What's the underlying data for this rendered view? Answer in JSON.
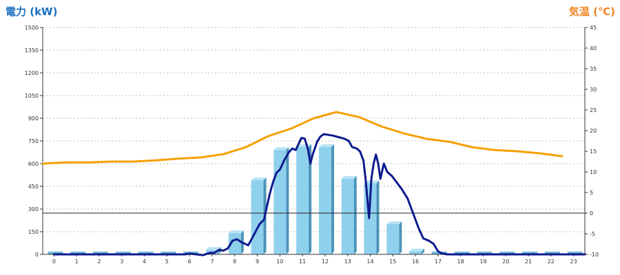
{
  "chart_data": {
    "type": "bar+line",
    "left_axis_title": "電力 (kW)",
    "right_axis_title": "気温 (℃)",
    "categories": [
      "0",
      "1",
      "2",
      "3",
      "4",
      "5",
      "6",
      "7",
      "8",
      "9",
      "10",
      "11",
      "12",
      "13",
      "14",
      "15",
      "16",
      "17",
      "18",
      "19",
      "20",
      "21",
      "22",
      "23"
    ],
    "y_left": {
      "min": 0,
      "max": 1500,
      "ticks": [
        0,
        150,
        300,
        450,
        600,
        750,
        900,
        1050,
        1200,
        1350,
        1500
      ]
    },
    "y_right": {
      "min": -10,
      "max": 45,
      "ticks": [
        -10,
        -5,
        0,
        5,
        10,
        15,
        20,
        25,
        30,
        35,
        40,
        45
      ]
    },
    "bars": {
      "axis": "left",
      "values": [
        0,
        0,
        0,
        0,
        0,
        0,
        0,
        30,
        140,
        490,
        690,
        710,
        710,
        500,
        470,
        200,
        20,
        0,
        0,
        0,
        0,
        0,
        0,
        0
      ]
    },
    "power_line": {
      "axis": "left",
      "points": [
        [
          0,
          0
        ],
        [
          5.8,
          0
        ],
        [
          6,
          5
        ],
        [
          6.3,
          0
        ],
        [
          6.6,
          -5
        ],
        [
          6.9,
          10
        ],
        [
          7.1,
          10
        ],
        [
          7.3,
          30
        ],
        [
          7.5,
          25
        ],
        [
          7.7,
          40
        ],
        [
          7.9,
          90
        ],
        [
          8.1,
          100
        ],
        [
          8.3,
          80
        ],
        [
          8.6,
          60
        ],
        [
          8.85,
          130
        ],
        [
          9.1,
          200
        ],
        [
          9.3,
          230
        ],
        [
          9.4,
          300
        ],
        [
          9.55,
          400
        ],
        [
          9.7,
          480
        ],
        [
          9.85,
          540
        ],
        [
          10.0,
          560
        ],
        [
          10.2,
          625
        ],
        [
          10.4,
          675
        ],
        [
          10.55,
          700
        ],
        [
          10.7,
          690
        ],
        [
          10.95,
          770
        ],
        [
          11.1,
          765
        ],
        [
          11.25,
          690
        ],
        [
          11.35,
          600
        ],
        [
          11.45,
          660
        ],
        [
          11.65,
          745
        ],
        [
          11.8,
          780
        ],
        [
          11.95,
          795
        ],
        [
          12.15,
          790
        ],
        [
          12.35,
          785
        ],
        [
          12.6,
          775
        ],
        [
          12.85,
          765
        ],
        [
          13.05,
          750
        ],
        [
          13.2,
          710
        ],
        [
          13.4,
          700
        ],
        [
          13.55,
          680
        ],
        [
          13.7,
          620
        ],
        [
          13.8,
          490
        ],
        [
          13.9,
          320
        ],
        [
          13.95,
          240
        ],
        [
          14.05,
          500
        ],
        [
          14.15,
          600
        ],
        [
          14.25,
          660
        ],
        [
          14.35,
          600
        ],
        [
          14.45,
          500
        ],
        [
          14.6,
          600
        ],
        [
          14.75,
          545
        ],
        [
          14.95,
          520
        ],
        [
          15.15,
          480
        ],
        [
          15.4,
          430
        ],
        [
          15.65,
          370
        ],
        [
          15.9,
          270
        ],
        [
          16.15,
          170
        ],
        [
          16.35,
          105
        ],
        [
          16.6,
          90
        ],
        [
          16.8,
          70
        ],
        [
          17.0,
          20
        ],
        [
          17.2,
          5
        ],
        [
          17.4,
          0
        ],
        [
          23.5,
          0
        ]
      ]
    },
    "temperature_line": {
      "axis": "right",
      "points": [
        [
          -0.5,
          12
        ],
        [
          0.5,
          12.3
        ],
        [
          1.5,
          12.3
        ],
        [
          2.5,
          12.5
        ],
        [
          3.5,
          12.5
        ],
        [
          4.5,
          12.8
        ],
        [
          5.5,
          13.2
        ],
        [
          6.5,
          13.5
        ],
        [
          7.5,
          14.3
        ],
        [
          8.5,
          16
        ],
        [
          9.5,
          18.7
        ],
        [
          10.5,
          20.5
        ],
        [
          11.5,
          23
        ],
        [
          12.5,
          24.5
        ],
        [
          13.5,
          23.3
        ],
        [
          14.5,
          21
        ],
        [
          15.5,
          19.3
        ],
        [
          16.5,
          18
        ],
        [
          17.5,
          17.3
        ],
        [
          18.5,
          16
        ],
        [
          19.5,
          15.3
        ],
        [
          20.5,
          15
        ],
        [
          21.5,
          14.5
        ],
        [
          22.5,
          13.8
        ]
      ]
    },
    "colors": {
      "left_axis_title": "#1a6fbf",
      "right_axis_title": "#f0821e",
      "bar_front": "#8fd0ec",
      "bar_side": "#4a93b8",
      "bar_top": "#b8e4f5",
      "bar_floor": "#6fb6d6",
      "power_line": "#0d1a8c",
      "temperature_line": "#f5a000",
      "grid": "#bbbbbb",
      "axis": "#333333"
    },
    "grid": true
  }
}
